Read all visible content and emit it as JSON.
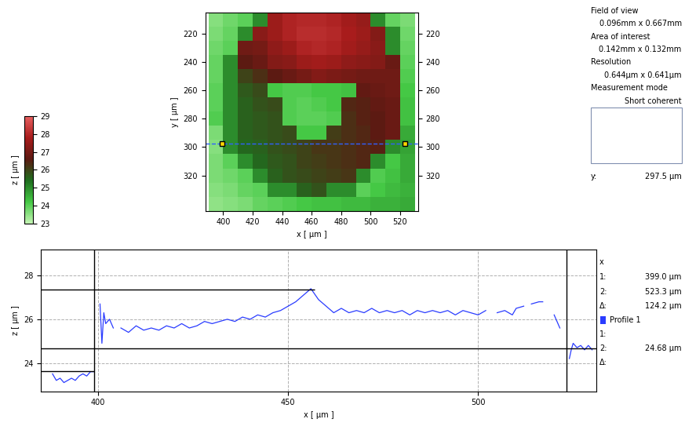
{
  "chart_data": [
    {
      "type": "heatmap",
      "x_label": "x [ µm ]",
      "y_label": "y [ µm ]",
      "x_edges": [
        390,
        400,
        410,
        420,
        430,
        440,
        450,
        460,
        470,
        480,
        490,
        500,
        510,
        520,
        530
      ],
      "y_edges": [
        205,
        215,
        225,
        235,
        245,
        255,
        265,
        275,
        285,
        295,
        305,
        315,
        325,
        335,
        345
      ],
      "cells": [
        [
          23.6,
          23.8,
          24.0,
          25.0,
          27.6,
          27.9,
          28.0,
          28.0,
          27.9,
          27.7,
          27.5,
          25.0,
          23.9,
          23.7
        ],
        [
          23.7,
          23.9,
          25.0,
          27.3,
          27.6,
          27.9,
          28.1,
          28.1,
          28.0,
          27.8,
          27.6,
          27.2,
          25.0,
          23.8
        ],
        [
          23.8,
          24.0,
          26.9,
          27.0,
          27.4,
          27.6,
          27.9,
          28.0,
          27.9,
          27.7,
          27.5,
          27.3,
          25.0,
          23.9
        ],
        [
          23.9,
          25.0,
          26.6,
          26.8,
          27.2,
          27.3,
          27.6,
          27.7,
          27.6,
          27.4,
          27.3,
          27.2,
          26.8,
          24.0
        ],
        [
          23.9,
          25.0,
          26.0,
          26.3,
          26.6,
          26.8,
          27.0,
          27.2,
          27.1,
          27.0,
          26.9,
          26.9,
          26.9,
          24.1
        ],
        [
          24.0,
          25.0,
          25.7,
          25.9,
          24.2,
          24.1,
          24.1,
          24.2,
          24.2,
          24.3,
          26.7,
          26.8,
          26.9,
          24.2
        ],
        [
          24.0,
          25.0,
          25.6,
          25.8,
          25.9,
          24.1,
          24.0,
          24.1,
          24.2,
          26.4,
          26.5,
          26.7,
          26.8,
          24.3
        ],
        [
          24.1,
          25.0,
          25.6,
          25.7,
          25.8,
          24.1,
          24.0,
          24.0,
          24.1,
          26.3,
          26.5,
          26.6,
          26.8,
          24.3
        ],
        [
          23.7,
          25.0,
          25.6,
          25.7,
          25.8,
          25.9,
          24.2,
          24.2,
          26.1,
          26.3,
          26.4,
          26.6,
          26.8,
          24.6
        ],
        [
          23.6,
          25.0,
          25.5,
          25.6,
          25.8,
          25.9,
          26.0,
          26.2,
          26.2,
          26.3,
          26.4,
          26.5,
          25.0,
          24.7
        ],
        [
          23.7,
          24.0,
          25.0,
          25.5,
          25.7,
          25.8,
          26.0,
          26.1,
          26.2,
          26.3,
          26.4,
          25.0,
          24.2,
          24.6
        ],
        [
          23.7,
          23.8,
          24.0,
          25.0,
          25.6,
          25.8,
          25.9,
          26.0,
          26.1,
          26.2,
          25.0,
          24.1,
          24.3,
          24.6
        ],
        [
          23.6,
          23.7,
          23.9,
          24.0,
          25.0,
          25.0,
          25.6,
          25.8,
          25.0,
          25.0,
          24.0,
          24.2,
          24.4,
          24.5
        ],
        [
          23.5,
          23.6,
          23.7,
          23.9,
          24.0,
          24.1,
          24.2,
          24.3,
          24.3,
          24.4,
          24.4,
          24.5,
          24.5,
          24.6
        ]
      ],
      "xlim": [
        388,
        532
      ],
      "ylim": [
        345,
        205
      ],
      "xticks": [
        400,
        420,
        440,
        460,
        480,
        500,
        520
      ],
      "yticks": [
        220,
        240,
        260,
        280,
        300,
        320
      ],
      "colorbar": {
        "label": "z [ µm ]",
        "range": [
          23,
          29
        ],
        "ticks": [
          23,
          24,
          25,
          26,
          27,
          28,
          29
        ]
      },
      "profile_y": 297.5,
      "profile_x": [
        399.0,
        523.3
      ]
    },
    {
      "type": "line",
      "x_label": "x [ µm ]",
      "y_label": "z [ µm ]",
      "x": [
        388,
        389,
        390,
        391,
        392,
        393,
        394,
        395,
        396,
        397,
        398,
        399,
        399.8,
        400.5,
        401,
        401.5,
        402,
        403,
        404,
        405,
        406,
        408,
        410,
        412,
        414,
        416,
        418,
        420,
        422,
        424,
        426,
        428,
        430,
        432,
        434,
        436,
        438,
        440,
        442,
        444,
        446,
        448,
        450,
        452,
        454,
        456,
        458,
        460,
        462,
        464,
        466,
        468,
        470,
        472,
        474,
        476,
        478,
        480,
        482,
        484,
        486,
        488,
        490,
        492,
        494,
        496,
        498,
        500,
        502,
        503.5,
        505,
        507,
        509,
        510,
        512,
        513,
        514,
        516,
        517,
        518.5,
        520,
        521,
        521.5,
        523,
        524,
        524.5,
        525,
        526,
        527,
        528,
        529,
        530
      ],
      "series": [
        {
          "name": "Profile 1",
          "color": "#2a3cff",
          "values": [
            23.5,
            23.2,
            23.3,
            23.1,
            23.2,
            23.3,
            23.2,
            23.4,
            23.5,
            23.4,
            23.6,
            23.6,
            null,
            26.7,
            24.9,
            26.3,
            25.8,
            26.0,
            25.6,
            null,
            25.6,
            25.4,
            25.7,
            25.5,
            25.6,
            25.5,
            25.7,
            25.6,
            25.8,
            25.6,
            25.7,
            25.9,
            25.8,
            25.9,
            26.0,
            25.9,
            26.1,
            26.0,
            26.2,
            26.1,
            26.3,
            26.4,
            26.6,
            26.8,
            27.1,
            27.4,
            26.9,
            26.6,
            26.3,
            26.5,
            26.3,
            26.4,
            26.3,
            26.5,
            26.3,
            26.4,
            26.3,
            26.4,
            26.2,
            26.4,
            26.3,
            26.4,
            26.3,
            26.4,
            26.2,
            26.4,
            26.3,
            26.2,
            26.4,
            null,
            26.3,
            26.4,
            26.2,
            26.5,
            26.6,
            null,
            26.7,
            26.8,
            26.8,
            null,
            26.2,
            25.8,
            25.6,
            null,
            24.2,
            24.6,
            24.9,
            24.7,
            24.8,
            24.6,
            24.8,
            24.6
          ]
        }
      ],
      "xlim": [
        385,
        531
      ],
      "ylim": [
        22.7,
        29.2
      ],
      "xticks": [
        400,
        450,
        500
      ],
      "yticks": [
        24,
        26,
        28
      ],
      "grid": true,
      "cursors_x": [
        399.0,
        523.3
      ],
      "cursors_z": [
        {
          "z": 27.35,
          "x_range": [
            385,
            457
          ]
        },
        {
          "z": 24.68
        },
        {
          "z": 23.62,
          "x_range": [
            385,
            399.0
          ]
        }
      ]
    }
  ],
  "info_panel": {
    "rows": [
      [
        "Field of view"
      ],
      [
        "0.096mm x 0.667mm"
      ],
      [
        "Area of interest"
      ],
      [
        "0.142mm x 0.132mm"
      ],
      [
        "Resolution"
      ],
      [
        "0.644µm x 0.641µm"
      ],
      [
        "Measurement mode"
      ],
      [
        "Short coherent"
      ]
    ],
    "y_row": [
      "y:",
      "297.5 µm"
    ]
  },
  "cursor_panel": {
    "title": "x",
    "rows": [
      [
        "1:",
        "399.0 µm"
      ],
      [
        "2:",
        "523.3 µm"
      ],
      [
        "Δ:",
        "124.2 µm"
      ]
    ],
    "series_rows": [
      [
        "1:"
      ],
      [
        "2:",
        "24.68 µm"
      ],
      [
        "Δ:"
      ]
    ]
  }
}
